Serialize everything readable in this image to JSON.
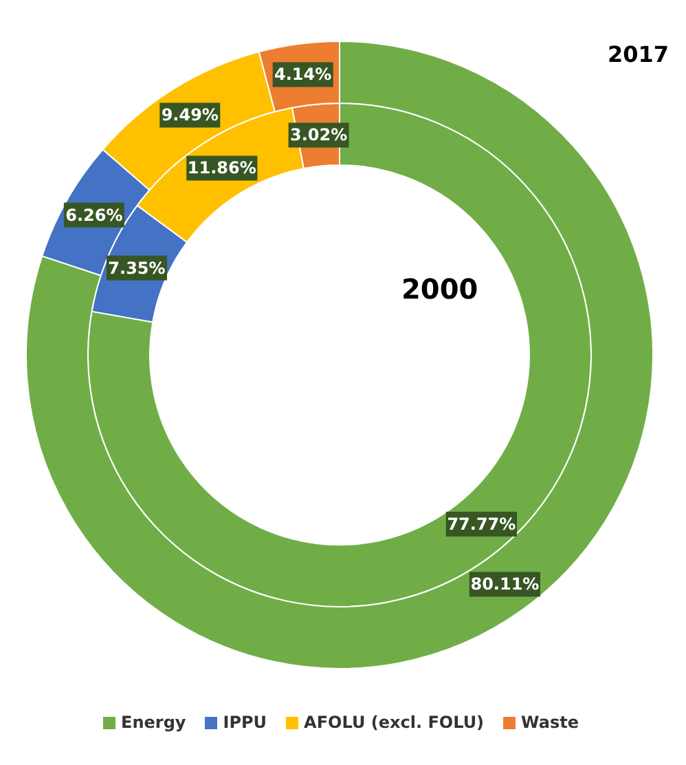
{
  "chart_data": {
    "type": "donut",
    "categories": [
      "Energy",
      "IPPU",
      "AFOLU (excl. FOLU)",
      "Waste"
    ],
    "colors": [
      "#70ad47",
      "#4472c4",
      "#ffc000",
      "#ed7d31"
    ],
    "series": [
      {
        "name": "2000",
        "values": [
          77.77,
          7.35,
          11.86,
          3.02
        ],
        "value_labels": [
          "77.77%",
          "7.35%",
          "11.86%",
          "3.02%"
        ]
      },
      {
        "name": "2017",
        "values": [
          80.11,
          6.26,
          9.49,
          4.14
        ],
        "value_labels": [
          "80.11%",
          "6.26%",
          "9.49%",
          "4.14%"
        ]
      }
    ],
    "legend": "bottom"
  }
}
